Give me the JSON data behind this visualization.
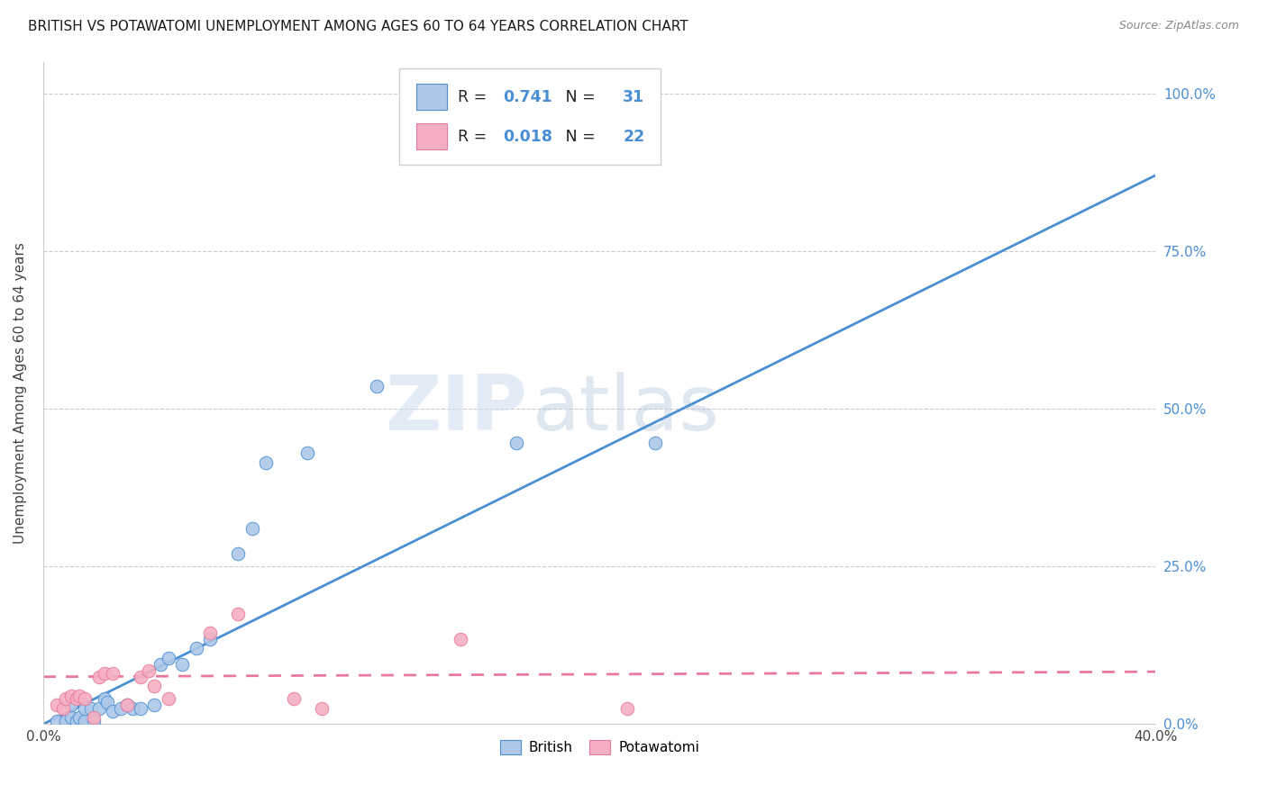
{
  "title": "BRITISH VS POTAWATOMI UNEMPLOYMENT AMONG AGES 60 TO 64 YEARS CORRELATION CHART",
  "source": "Source: ZipAtlas.com",
  "ylabel": "Unemployment Among Ages 60 to 64 years",
  "xlim": [
    0.0,
    0.4
  ],
  "ylim": [
    0.0,
    1.05
  ],
  "xtick_positions": [
    0.0,
    0.1,
    0.2,
    0.3,
    0.4
  ],
  "xtick_labels": [
    "0.0%",
    "",
    "",
    "",
    "40.0%"
  ],
  "ytick_positions": [
    0.0,
    0.25,
    0.5,
    0.75,
    1.0
  ],
  "ytick_labels_right": [
    "0.0%",
    "25.0%",
    "50.0%",
    "75.0%",
    "100.0%"
  ],
  "british_color": "#adc8e8",
  "potawatomi_color": "#f5afc0",
  "british_line_color": "#4a8fd4",
  "potawatomi_line_color": "#e8799a",
  "R_british": "0.741",
  "N_british": "31",
  "R_potawatomi": "0.018",
  "N_potawatomi": "22",
  "watermark_zip": "ZIP",
  "watermark_atlas": "atlas",
  "british_scatter_x": [
    0.005,
    0.008,
    0.01,
    0.01,
    0.012,
    0.013,
    0.015,
    0.015,
    0.017,
    0.018,
    0.02,
    0.022,
    0.023,
    0.025,
    0.028,
    0.03,
    0.032,
    0.035,
    0.04,
    0.042,
    0.045,
    0.05,
    0.055,
    0.06,
    0.07,
    0.075,
    0.08,
    0.095,
    0.12,
    0.17,
    0.22
  ],
  "british_scatter_y": [
    0.005,
    0.005,
    0.01,
    0.03,
    0.005,
    0.01,
    0.005,
    0.025,
    0.025,
    0.005,
    0.025,
    0.04,
    0.035,
    0.02,
    0.025,
    0.03,
    0.025,
    0.025,
    0.03,
    0.095,
    0.105,
    0.095,
    0.12,
    0.135,
    0.27,
    0.31,
    0.415,
    0.43,
    0.535,
    0.445,
    0.445
  ],
  "potawatomi_scatter_x": [
    0.005,
    0.007,
    0.008,
    0.01,
    0.012,
    0.013,
    0.015,
    0.018,
    0.02,
    0.022,
    0.025,
    0.03,
    0.035,
    0.038,
    0.04,
    0.045,
    0.06,
    0.07,
    0.09,
    0.1,
    0.15,
    0.21
  ],
  "potawatomi_scatter_y": [
    0.03,
    0.025,
    0.04,
    0.045,
    0.04,
    0.045,
    0.04,
    0.01,
    0.075,
    0.08,
    0.08,
    0.03,
    0.075,
    0.085,
    0.06,
    0.04,
    0.145,
    0.175,
    0.04,
    0.025,
    0.135,
    0.025
  ],
  "british_trend_x": [
    0.0,
    0.4
  ],
  "british_trend_y": [
    0.0,
    0.87
  ],
  "potawatomi_trend_x": [
    0.0,
    0.4
  ],
  "potawatomi_trend_y": [
    0.075,
    0.083
  ]
}
